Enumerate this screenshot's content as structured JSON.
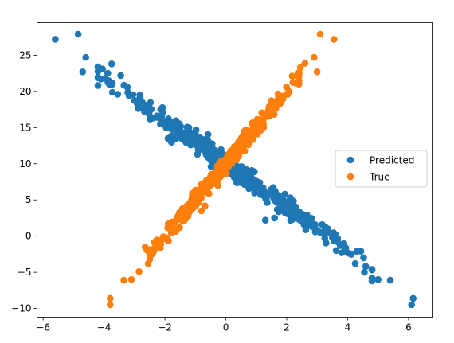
{
  "chart_data": {
    "type": "scatter",
    "title": "",
    "xlabel": "",
    "ylabel": "",
    "xlim": [
      -6.2,
      6.8
    ],
    "ylim": [
      -11.2,
      29.5
    ],
    "xticks": [
      -6,
      -4,
      -2,
      0,
      2,
      4,
      6
    ],
    "yticks": [
      -10,
      -5,
      0,
      5,
      10,
      15,
      20,
      25
    ],
    "grid": false,
    "legend_position": "center-right",
    "series": [
      {
        "name": "Predicted",
        "color": "#1f77b4",
        "trend": {
          "slope": -3.0,
          "intercept": 10.0,
          "x_range": [
            -4.2,
            4.8
          ],
          "noise": 0.7,
          "count": 450
        },
        "points": [
          [
            -5.6,
            27.2
          ],
          [
            -4.85,
            27.9
          ],
          [
            -4.6,
            24.7
          ],
          [
            -4.7,
            22.7
          ],
          [
            -4.05,
            23.1
          ],
          [
            -3.75,
            23.8
          ],
          [
            -3.45,
            22.2
          ],
          [
            2.65,
            2.15
          ],
          [
            3.1,
            0.5
          ],
          [
            3.5,
            -0.2
          ],
          [
            3.8,
            -1.2
          ],
          [
            4.3,
            -2.1
          ],
          [
            4.25,
            -3.8
          ],
          [
            4.55,
            -5.0
          ],
          [
            5.0,
            -6.0
          ],
          [
            5.4,
            -6.1
          ],
          [
            6.15,
            -8.6
          ],
          [
            6.1,
            -9.5
          ],
          [
            1.3,
            2.2
          ],
          [
            1.6,
            2.5
          ],
          [
            -2.4,
            16.3
          ],
          [
            -1.9,
            13.5
          ]
        ]
      },
      {
        "name": "True",
        "color": "#ff7f0e",
        "trend": {
          "slope": 5.0,
          "intercept": 10.0,
          "x_range": [
            -2.5,
            2.4
          ],
          "noise": 0.6,
          "count": 450
        },
        "points": [
          [
            -3.8,
            -8.6
          ],
          [
            -3.8,
            -9.5
          ],
          [
            -3.35,
            -6.1
          ],
          [
            -3.1,
            -6.0
          ],
          [
            -2.85,
            -4.9
          ],
          [
            -2.55,
            -3.8
          ],
          [
            -2.65,
            -1.5
          ],
          [
            -2.4,
            -2.4
          ],
          [
            -2.6,
            -1.9
          ],
          [
            -2.25,
            -1.4
          ],
          [
            2.45,
            23.3
          ],
          [
            2.6,
            23.9
          ],
          [
            2.9,
            24.7
          ],
          [
            3.0,
            22.7
          ],
          [
            3.1,
            27.9
          ],
          [
            3.55,
            27.2
          ],
          [
            -0.8,
            3.5
          ],
          [
            -1.1,
            5.9
          ]
        ]
      }
    ]
  }
}
